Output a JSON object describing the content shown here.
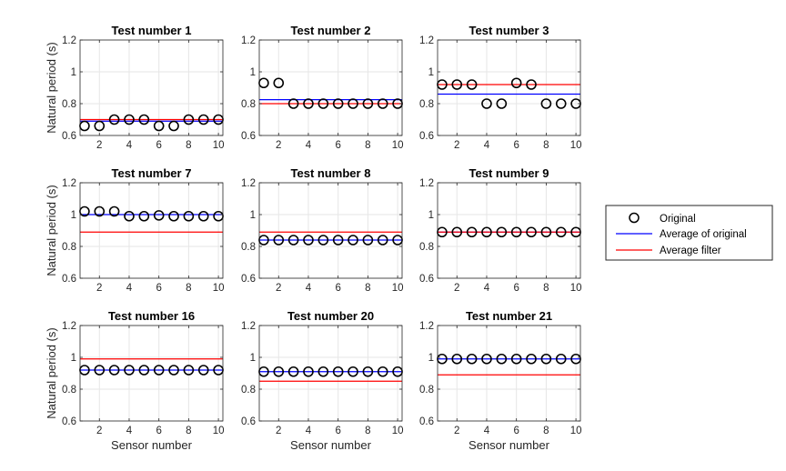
{
  "chart_data": {
    "type": "scatter",
    "layout": "3x3 grid",
    "xlabel": "Sensor number",
    "ylabel": "Natural period (s)",
    "xlim": [
      0.7,
      10.3
    ],
    "ylim": [
      0.6,
      1.2
    ],
    "xticks": [
      "2",
      "4",
      "6",
      "8",
      "10"
    ],
    "yticks": [
      "0.6",
      "0.8",
      "1",
      "1.2"
    ],
    "grid": true,
    "legend": {
      "placement": "right",
      "entries": [
        "Original",
        "Average of original",
        "Average filter"
      ]
    },
    "colors": {
      "original": "#000000",
      "avg_original": "#0000ff",
      "avg_filter": "#ff0000",
      "grid": "#e6e6e6"
    },
    "panels": [
      {
        "title": "Test number 1",
        "x": [
          1,
          2,
          3,
          4,
          5,
          6,
          7,
          8,
          9,
          10
        ],
        "original": [
          0.66,
          0.66,
          0.7,
          0.7,
          0.7,
          0.66,
          0.66,
          0.7,
          0.7,
          0.7
        ],
        "avg_original": 0.69,
        "avg_filter": 0.7
      },
      {
        "title": "Test number 2",
        "x": [
          1,
          2,
          3,
          4,
          5,
          6,
          7,
          8,
          9,
          10
        ],
        "original": [
          0.93,
          0.93,
          0.8,
          0.8,
          0.8,
          0.8,
          0.8,
          0.8,
          0.8,
          0.8
        ],
        "avg_original": 0.825,
        "avg_filter": 0.8
      },
      {
        "title": "Test number 3",
        "x": [
          1,
          2,
          3,
          4,
          5,
          6,
          7,
          8,
          9,
          10
        ],
        "original": [
          0.92,
          0.92,
          0.92,
          0.8,
          0.8,
          0.93,
          0.92,
          0.8,
          0.8,
          0.8
        ],
        "avg_original": 0.86,
        "avg_filter": 0.92
      },
      {
        "title": "Test number 7",
        "x": [
          1,
          2,
          3,
          4,
          5,
          6,
          7,
          8,
          9,
          10
        ],
        "original": [
          1.02,
          1.02,
          1.02,
          0.99,
          0.99,
          0.995,
          0.99,
          0.99,
          0.99,
          0.99
        ],
        "avg_original": 1.0,
        "avg_filter": 0.89
      },
      {
        "title": "Test number 8",
        "x": [
          1,
          2,
          3,
          4,
          5,
          6,
          7,
          8,
          9,
          10
        ],
        "original": [
          0.84,
          0.84,
          0.84,
          0.84,
          0.84,
          0.84,
          0.84,
          0.84,
          0.84,
          0.84
        ],
        "avg_original": 0.84,
        "avg_filter": 0.89
      },
      {
        "title": "Test number 9",
        "x": [
          1,
          2,
          3,
          4,
          5,
          6,
          7,
          8,
          9,
          10
        ],
        "original": [
          0.89,
          0.89,
          0.89,
          0.89,
          0.89,
          0.89,
          0.89,
          0.89,
          0.89,
          0.89
        ],
        "avg_original": 0.89,
        "avg_filter": 0.89
      },
      {
        "title": "Test number 16",
        "x": [
          1,
          2,
          3,
          4,
          5,
          6,
          7,
          8,
          9,
          10
        ],
        "original": [
          0.92,
          0.92,
          0.92,
          0.92,
          0.92,
          0.92,
          0.92,
          0.92,
          0.92,
          0.92
        ],
        "avg_original": 0.92,
        "avg_filter": 0.99
      },
      {
        "title": "Test number 20",
        "x": [
          1,
          2,
          3,
          4,
          5,
          6,
          7,
          8,
          9,
          10
        ],
        "original": [
          0.91,
          0.91,
          0.91,
          0.91,
          0.91,
          0.91,
          0.91,
          0.91,
          0.91,
          0.91
        ],
        "avg_original": 0.91,
        "avg_filter": 0.85
      },
      {
        "title": "Test number 21",
        "x": [
          1,
          2,
          3,
          4,
          5,
          6,
          7,
          8,
          9,
          10
        ],
        "original": [
          0.99,
          0.99,
          0.99,
          0.99,
          0.99,
          0.99,
          0.99,
          0.99,
          0.99,
          0.99
        ],
        "avg_original": 0.99,
        "avg_filter": 0.89
      }
    ]
  }
}
